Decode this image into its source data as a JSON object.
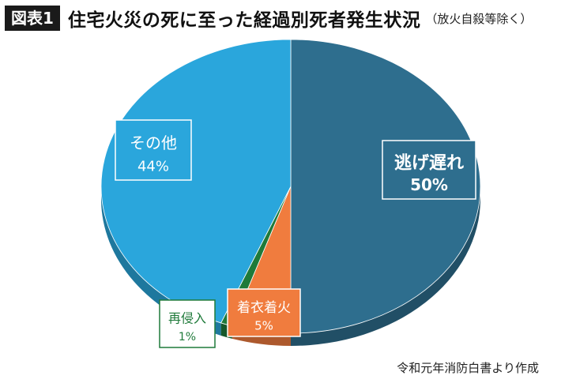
{
  "header": {
    "badge": "図表1",
    "title": "住宅火災の死に至った経過別死者発生状況",
    "subtitle": "（放火自殺等除く）"
  },
  "source": "令和元年消防白書より作成",
  "chart_data": {
    "type": "pie",
    "title": "住宅火災の死に至った経過別死者発生状況",
    "subtitle": "（放火自殺等除く）",
    "slices": [
      {
        "label": "逃げ遅れ",
        "value": 50,
        "value_label": "50%",
        "color": "#2e6e8e"
      },
      {
        "label": "着衣着火",
        "value": 5,
        "value_label": "5%",
        "color": "#f07c3e"
      },
      {
        "label": "再侵入",
        "value": 1,
        "value_label": "1%",
        "color": "#1f7a3a"
      },
      {
        "label": "その他",
        "value": 44,
        "value_label": "44%",
        "color": "#2aa6dc"
      }
    ],
    "legend": "none",
    "style": "3d-tilted"
  }
}
